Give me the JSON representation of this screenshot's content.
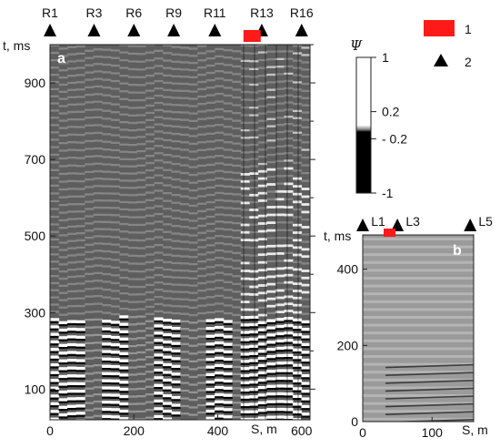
{
  "figure": {
    "panel_a": {
      "letter": "a",
      "y_axis_label": "t, ms",
      "x_axis_label": "S, m",
      "y_ticks": [
        "100",
        "300",
        "500",
        "700",
        "900"
      ],
      "x_ticks": [
        "0",
        "200",
        "400",
        "600"
      ],
      "receivers": [
        "R1",
        "R3",
        "R6",
        "R9",
        "R11",
        "R13",
        "R16"
      ]
    },
    "panel_b": {
      "letter": "b",
      "y_axis_label": "t, ms",
      "x_axis_label": "S, m",
      "y_ticks": [
        "0",
        "200",
        "400"
      ],
      "x_ticks": [
        "0",
        "100"
      ],
      "receivers": [
        "L1",
        "L3",
        "L5"
      ]
    },
    "colorbar": {
      "symbol": "Ψ",
      "labels": [
        "1",
        "0.2",
        "- 0.2",
        "-1"
      ]
    },
    "legend": {
      "source_label": "1",
      "receiver_label": "2"
    },
    "colors": {
      "source": "#ff1a1a",
      "panel_a_background": "#5e5e5e",
      "panel_b_background": "#9a9a9a"
    }
  },
  "chart_data": [
    {
      "type": "heatmap",
      "panel": "a",
      "x_label": "S, m",
      "y_label": "t, ms",
      "xlim": [
        0,
        620
      ],
      "ylim": [
        20,
        1000
      ],
      "x_ticks": [
        0,
        200,
        400,
        600
      ],
      "y_ticks": [
        100,
        300,
        500,
        700,
        900
      ],
      "receivers": [
        {
          "name": "R1",
          "x": 0
        },
        {
          "name": "R3",
          "x": 105
        },
        {
          "name": "R6",
          "x": 200
        },
        {
          "name": "R9",
          "x": 295
        },
        {
          "name": "R11",
          "x": 393
        },
        {
          "name": "R13",
          "x": 505
        },
        {
          "name": "R16",
          "x": 600
        }
      ],
      "source_x": 470
    },
    {
      "type": "heatmap",
      "panel": "b",
      "x_label": "S, m",
      "y_label": "t, ms",
      "xlim": [
        0,
        160
      ],
      "ylim": [
        0,
        490
      ],
      "x_ticks": [
        0,
        100
      ],
      "y_ticks": [
        0,
        200,
        400
      ],
      "receivers": [
        {
          "name": "L1",
          "x": 0
        },
        {
          "name": "L3",
          "x": 50
        },
        {
          "name": "L5",
          "x": 155
        }
      ],
      "source_x": 38
    },
    {
      "type": "colorbar",
      "symbol": "Ψ",
      "ticks": [
        1,
        0.2,
        -0.2,
        -1
      ]
    }
  ]
}
